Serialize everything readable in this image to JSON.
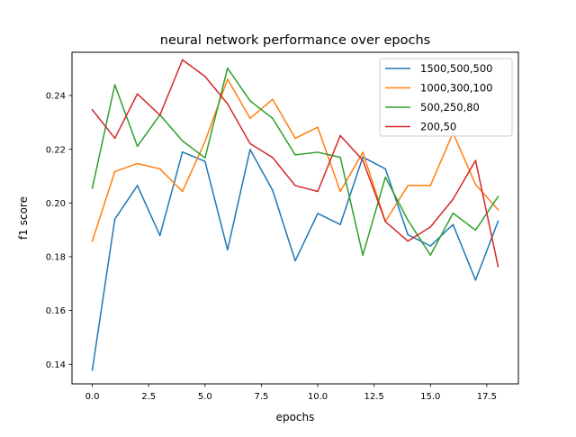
{
  "chart_data": {
    "type": "line",
    "title": "neural network performance over epochs",
    "xlabel": "epochs",
    "ylabel": "f1 score",
    "xlim": [
      -0.9,
      18.9
    ],
    "ylim": [
      0.1327,
      0.2561
    ],
    "xticks": [
      0.0,
      2.5,
      5.0,
      7.5,
      10.0,
      12.5,
      15.0,
      17.5
    ],
    "xtick_labels": [
      "0.0",
      "2.5",
      "5.0",
      "7.5",
      "10.0",
      "12.5",
      "15.0",
      "17.5"
    ],
    "yticks": [
      0.14,
      0.16,
      0.18,
      0.2,
      0.22,
      0.24
    ],
    "ytick_labels": [
      "0.14",
      "0.16",
      "0.18",
      "0.20",
      "0.22",
      "0.24"
    ],
    "grid": false,
    "legend_position": "upper-right",
    "x": [
      0,
      1,
      2,
      3,
      4,
      5,
      6,
      7,
      8,
      9,
      10,
      11,
      12,
      13,
      14,
      15,
      16,
      17,
      18
    ],
    "series": [
      {
        "name": "1500,500,500",
        "color": "#1f77b4",
        "values": [
          0.1378,
          0.194,
          0.2065,
          0.1879,
          0.219,
          0.2155,
          0.1826,
          0.2199,
          0.2047,
          0.1785,
          0.1961,
          0.192,
          0.2171,
          0.2127,
          0.1882,
          0.184,
          0.192,
          0.1713,
          0.1932
        ]
      },
      {
        "name": "1000,300,100",
        "color": "#ff7f0e",
        "values": [
          0.1858,
          0.2117,
          0.2147,
          0.2127,
          0.2043,
          0.2229,
          0.2461,
          0.2315,
          0.2386,
          0.2241,
          0.2282,
          0.2043,
          0.2189,
          0.1931,
          0.2065,
          0.2065,
          0.2261,
          0.2069,
          0.1975
        ]
      },
      {
        "name": "500,250,80",
        "color": "#2ca02c",
        "values": [
          0.2055,
          0.244,
          0.2211,
          0.2328,
          0.2231,
          0.2168,
          0.2502,
          0.238,
          0.2315,
          0.2179,
          0.2189,
          0.217,
          0.1806,
          0.2096,
          0.1936,
          0.1806,
          0.1962,
          0.1899,
          0.2024
        ]
      },
      {
        "name": "200,50",
        "color": "#d62728",
        "values": [
          0.2347,
          0.2241,
          0.2406,
          0.2327,
          0.2533,
          0.2471,
          0.2369,
          0.2221,
          0.2169,
          0.2065,
          0.2043,
          0.2251,
          0.2159,
          0.1931,
          0.1858,
          0.1911,
          0.2014,
          0.2158,
          0.1764
        ]
      }
    ]
  }
}
